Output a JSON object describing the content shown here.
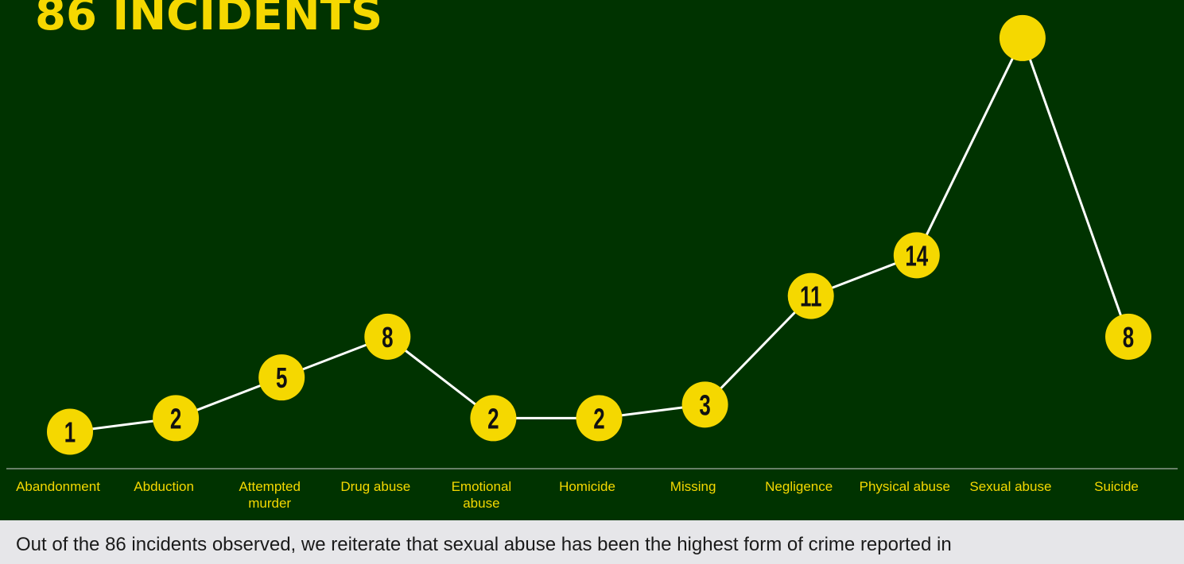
{
  "colors": {
    "background": "#003300",
    "accent": "#f5d800",
    "line": "#ffffff",
    "caption_bg": "#e6e6e9"
  },
  "chart_data": {
    "type": "line",
    "title": "86 INCIDENTS",
    "categories": [
      "Abandonment",
      "Abduction",
      "Attempted murder",
      "Drug abuse",
      "Emotional abuse",
      "Homicide",
      "Missing",
      "Negligence",
      "Physical abuse",
      "Sexual abuse",
      "Suicide"
    ],
    "values": [
      1,
      2,
      5,
      8,
      2,
      2,
      3,
      11,
      14,
      30,
      8
    ],
    "data_labels": [
      "1",
      "2",
      "5",
      "8",
      "2",
      "2",
      "3",
      "11",
      "14",
      "",
      "8"
    ],
    "category_labels": [
      [
        "Abandonment"
      ],
      [
        "Abduction"
      ],
      [
        "Attempted",
        "murder"
      ],
      [
        "Drug abuse"
      ],
      [
        "Emotional",
        "abuse"
      ],
      [
        "Homicide"
      ],
      [
        "Missing"
      ],
      [
        "Negligence"
      ],
      [
        "Physical abuse"
      ],
      [
        "Sexual abuse"
      ],
      [
        "Suicide"
      ]
    ],
    "grid": false,
    "legend": "none"
  },
  "caption": "Out of the 86 incidents observed, we reiterate that sexual abuse has been the highest form of crime reported in"
}
